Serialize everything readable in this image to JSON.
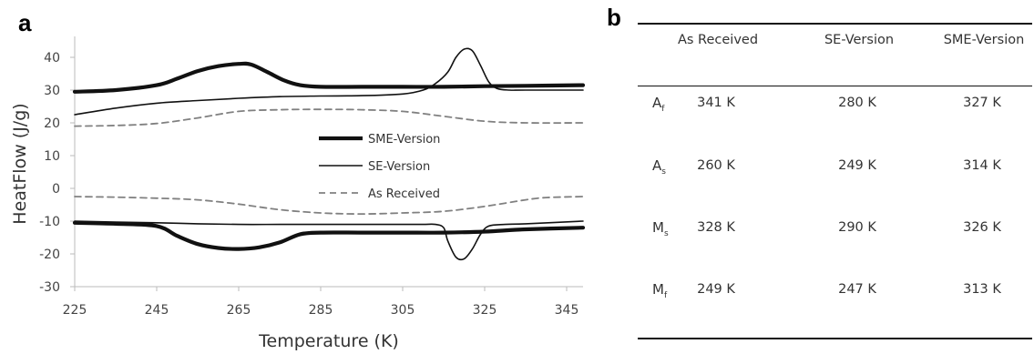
{
  "panel_a_label": "a",
  "panel_b_label": "b",
  "colors": {
    "sme": "#111111",
    "se": "#111111",
    "as_received": "#808080",
    "axis": "#bbbbbb"
  },
  "chart_data": {
    "type": "line",
    "xlabel": "Temperature (K)",
    "ylabel": "HeatFlow (J/g)",
    "xlim": [
      225,
      349
    ],
    "ylim": [
      -30,
      45
    ],
    "xticks": [
      225,
      245,
      265,
      285,
      305,
      325,
      345
    ],
    "yticks": [
      -30,
      -20,
      -10,
      0,
      10,
      20,
      30,
      40
    ],
    "grid": false,
    "legend_position": "center",
    "legend": [
      "SME-Version",
      "SE-Version",
      "As Received"
    ],
    "series": [
      {
        "name": "SME-Version",
        "style": "thick-solid",
        "branch": "heating",
        "x": [
          225,
          235,
          245,
          250,
          255,
          260,
          265,
          268,
          272,
          276,
          280,
          285,
          295,
          305,
          315,
          325,
          335,
          349
        ],
        "y": [
          29.5,
          30.0,
          31.5,
          33.5,
          35.8,
          37.3,
          38.0,
          37.8,
          35.5,
          33.0,
          31.5,
          31.0,
          31.0,
          31.0,
          31.0,
          31.2,
          31.3,
          31.5
        ]
      },
      {
        "name": "SME-Version",
        "style": "thick-solid",
        "branch": "cooling",
        "x": [
          225,
          235,
          245,
          250,
          255,
          260,
          265,
          270,
          275,
          280,
          285,
          295,
          305,
          315,
          325,
          335,
          349
        ],
        "y": [
          -10.5,
          -10.8,
          -11.5,
          -14.5,
          -17.0,
          -18.2,
          -18.5,
          -18.0,
          -16.5,
          -14.0,
          -13.5,
          -13.5,
          -13.5,
          -13.5,
          -13.2,
          -12.5,
          -12.0
        ]
      },
      {
        "name": "SE-Version",
        "style": "thin-solid",
        "branch": "heating",
        "x": [
          225,
          235,
          245,
          255,
          265,
          275,
          285,
          295,
          305,
          310,
          313,
          316,
          318,
          320,
          322,
          324,
          326,
          328,
          331,
          335,
          349
        ],
        "y": [
          22.5,
          24.5,
          26.0,
          26.8,
          27.5,
          28.0,
          28.2,
          28.3,
          28.8,
          30.0,
          32.0,
          35.5,
          40.0,
          42.5,
          42.0,
          37.5,
          32.5,
          30.5,
          30.0,
          30.0,
          30.0
        ]
      },
      {
        "name": "SE-Version",
        "style": "thin-solid",
        "branch": "cooling",
        "x": [
          225,
          235,
          245,
          255,
          265,
          275,
          285,
          295,
          305,
          310,
          313,
          315,
          316,
          318,
          320,
          322,
          324,
          326,
          330,
          335,
          349
        ],
        "y": [
          -10.0,
          -10.3,
          -10.5,
          -10.8,
          -11.0,
          -11.0,
          -11.0,
          -11.0,
          -11.0,
          -11.0,
          -11.0,
          -12.0,
          -16.0,
          -21.0,
          -21.5,
          -18.5,
          -14.0,
          -11.5,
          -11.0,
          -10.8,
          -10.0
        ]
      },
      {
        "name": "As Received",
        "style": "dashed",
        "branch": "heating",
        "x": [
          225,
          235,
          245,
          255,
          265,
          275,
          285,
          295,
          305,
          315,
          325,
          335,
          349
        ],
        "y": [
          19.0,
          19.2,
          19.8,
          21.5,
          23.5,
          24.0,
          24.1,
          24.0,
          23.5,
          22.0,
          20.5,
          20.0,
          20.0
        ]
      },
      {
        "name": "As Received",
        "style": "dashed",
        "branch": "cooling",
        "x": [
          225,
          235,
          245,
          255,
          265,
          275,
          285,
          295,
          305,
          315,
          325,
          335,
          340,
          349
        ],
        "y": [
          -2.5,
          -2.7,
          -3.0,
          -3.5,
          -4.8,
          -6.5,
          -7.5,
          -7.8,
          -7.5,
          -7.0,
          -5.5,
          -3.5,
          -2.8,
          -2.5
        ]
      }
    ]
  },
  "table": {
    "headers": [
      "",
      "As Received",
      "SE-Version",
      "SME-Version"
    ],
    "rows": [
      {
        "label": "A",
        "sub": "f",
        "values": [
          "341 K",
          "280 K",
          "327 K"
        ]
      },
      {
        "label": "A",
        "sub": "s",
        "values": [
          "260 K",
          "249 K",
          "314 K"
        ]
      },
      {
        "label": "M",
        "sub": "s",
        "values": [
          "328 K",
          "290 K",
          "326 K"
        ]
      },
      {
        "label": "M",
        "sub": "f",
        "values": [
          "249 K",
          "247 K",
          "313 K"
        ]
      }
    ]
  }
}
